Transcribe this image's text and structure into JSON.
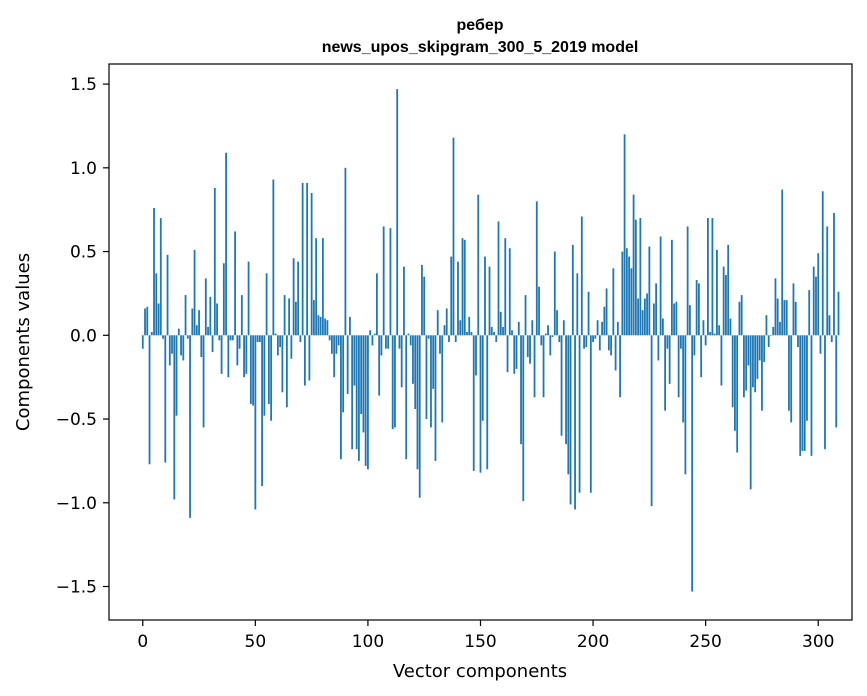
{
  "chart_data": {
    "type": "bar",
    "title_line1": "ребер",
    "title_line2": "news_upos_skipgram_300_5_2019 model",
    "xlabel": "Vector components",
    "ylabel": "Components values",
    "xlim": [
      -15,
      315
    ],
    "ylim": [
      -1.7,
      1.62
    ],
    "xticks": [
      0,
      50,
      100,
      150,
      200,
      250,
      300
    ],
    "yticks": [
      1.5,
      1.0,
      0.5,
      0.0,
      -0.5,
      -1.0,
      -1.5
    ],
    "ytick_labels": [
      "1.5",
      "1.0",
      "0.5",
      "0.0",
      "−0.5",
      "−1.0",
      "−1.5"
    ],
    "grid": false,
    "bar_color": "#1f77b4",
    "values": [
      -0.08,
      0.16,
      0.17,
      -0.77,
      0.02,
      0.76,
      0.37,
      0.19,
      0.7,
      -0.02,
      -0.76,
      0.48,
      -0.18,
      -0.11,
      -0.98,
      -0.48,
      0.04,
      -0.12,
      -0.15,
      0.24,
      -0.02,
      -1.09,
      0.16,
      0.51,
      0.06,
      0.15,
      -0.13,
      -0.55,
      0.34,
      0.05,
      0.23,
      -0.1,
      0.88,
      0.19,
      -0.03,
      -0.23,
      0.43,
      1.09,
      -0.25,
      -0.03,
      -0.03,
      0.62,
      -0.18,
      -0.08,
      0.24,
      -0.25,
      -0.23,
      0.44,
      -0.41,
      -0.42,
      -1.04,
      -0.04,
      -0.04,
      -0.9,
      -0.48,
      0.37,
      -0.41,
      -0.51,
      0.93,
      0.01,
      -0.12,
      -0.07,
      -0.34,
      0.24,
      -0.43,
      0.22,
      -0.14,
      0.46,
      0.2,
      0.44,
      -0.04,
      0.91,
      -0.3,
      0.91,
      -0.27,
      0.85,
      0.21,
      0.58,
      0.12,
      0.11,
      0.58,
      0.1,
      0.09,
      -0.03,
      -0.11,
      -0.25,
      -0.11,
      -0.06,
      -0.74,
      -0.46,
      1.0,
      -0.35,
      0.11,
      -0.68,
      -0.3,
      -0.68,
      -0.75,
      -0.47,
      -0.58,
      -0.78,
      -0.8,
      0.03,
      -0.06,
      0.01,
      0.37,
      -0.36,
      -0.12,
      0.65,
      -0.08,
      -0.08,
      0.64,
      -0.56,
      -0.55,
      1.47,
      -0.08,
      -0.31,
      0.41,
      -0.74,
      0.01,
      -0.06,
      -0.29,
      -0.44,
      -0.8,
      -0.97,
      0.42,
      0.35,
      -0.5,
      -0.02,
      -0.55,
      -0.32,
      -0.75,
      0.15,
      -0.11,
      -0.52,
      0.06,
      0.16,
      -0.04,
      0.47,
      1.18,
      -0.04,
      0.44,
      0.09,
      0.58,
      0.57,
      0.02,
      0.11,
      0.02,
      -0.81,
      -0.24,
      0.84,
      -0.82,
      -0.51,
      0.47,
      -0.8,
      0.41,
      0.05,
      0.02,
      -0.04,
      0.68,
      0.14,
      0.05,
      0.58,
      -0.22,
      0.52,
      0.03,
      -0.23,
      -0.2,
      0.08,
      -0.65,
      -0.99,
      0.24,
      -0.13,
      -0.17,
      0.09,
      -0.37,
      0.8,
      0.29,
      -0.06,
      -0.37,
      0.01,
      0.06,
      -0.12,
      -0.01,
      0.5,
      0.15,
      -0.04,
      -0.6,
      0.09,
      -0.65,
      -0.83,
      -1.01,
      0.54,
      -1.04,
      0.37,
      -0.94,
      0.71,
      -0.08,
      -0.07,
      0.26,
      -0.94,
      -0.04,
      -0.02,
      0.09,
      -0.09,
      0.08,
      0.17,
      0.28,
      -0.09,
      -0.12,
      0.4,
      -0.21,
      0.08,
      -0.37,
      0.5,
      1.2,
      0.52,
      0.47,
      0.4,
      0.84,
      0.69,
      0.22,
      0.7,
      0.15,
      0.22,
      0.25,
      0.53,
      -1.02,
      0.19,
      0.31,
      -0.15,
      0.59,
      0.1,
      -0.45,
      -0.08,
      -0.29,
      0.57,
      0.19,
      0.2,
      -0.37,
      -0.08,
      -0.52,
      -0.83,
      0.65,
      0.18,
      -1.53,
      -0.12,
      0.33,
      0.31,
      -0.25,
      0.09,
      -0.06,
      0.7,
      0.02,
      0.7,
      0.01,
      0.51,
      0.06,
      -0.3,
      0.41,
      0.36,
      0.54,
      0.1,
      -0.43,
      -0.57,
      -0.7,
      0.2,
      0.24,
      -0.37,
      -0.33,
      -0.18,
      -0.92,
      -0.31,
      -0.34,
      -0.26,
      -0.15,
      -0.45,
      -0.16,
      0.12,
      -0.07,
      0.0,
      0.05,
      0.34,
      0.22,
      0.08,
      0.87,
      0.21,
      0.21,
      -0.45,
      -0.52,
      0.31,
      0.2,
      -0.07,
      -0.72,
      -0.69,
      -0.69,
      -0.51,
      0.27,
      -0.72,
      0.41,
      0.35,
      0.49,
      -0.11,
      0.86,
      -0.68,
      0.65,
      0.12,
      -0.04,
      0.73,
      -0.55,
      0.26
    ]
  }
}
